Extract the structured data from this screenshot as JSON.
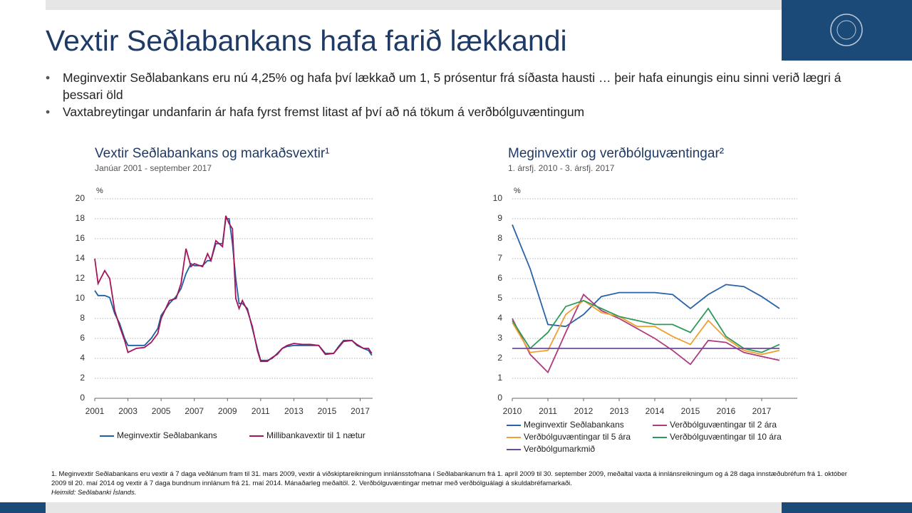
{
  "title": "Vextir Seðlabankans hafa farið lækkandi",
  "bullets": [
    "Meginvextir Seðlabankans eru nú 4,25% og hafa því lækkað um 1, 5 prósentur frá síðasta hausti … þeir hafa einungis einu sinni verið lægri á þessari öld",
    "Vaxtabreytingar undanfarin ár hafa fyrst fremst litast af því að ná tökum á verðbólguvæntingum"
  ],
  "footnotes": [
    "1. Meginvextir Seðlabankans eru vextir á 7 daga veðlánum fram til 31. mars 2009, vextir á viðskiptareikningum innlánsstofnana í Seðlabankanum frá 1. apríl 2009 til 30. september 2009, meðaltal vaxta á innlánsreikningum og á 28 daga innstæðubréfum frá 1. október 2009 til 20. maí 2014 og vextir á 7 daga bundnum innlánum frá 21. maí 2014. Mánaðarleg meðaltöl. 2. Verðbólguvæntingar metnar með verðbólguálagi á skuldabréfamarkaði.",
    "Heimild: Seðlabanki Íslands."
  ],
  "chart_data": [
    {
      "type": "line",
      "title": "Vextir Seðlabankans og markaðsvextir¹",
      "subtitle": "Janúar 2001 - september 2017",
      "y_unit": "%",
      "x": [
        2001.0,
        2001.2,
        2001.6,
        2001.9,
        2002.2,
        2002.5,
        2002.8,
        2003.0,
        2003.5,
        2004.0,
        2004.4,
        2004.8,
        2005.0,
        2005.5,
        2005.9,
        2006.2,
        2006.5,
        2006.8,
        2007.0,
        2007.5,
        2007.8,
        2008.0,
        2008.3,
        2008.7,
        2008.9,
        2009.1,
        2009.3,
        2009.5,
        2009.7,
        2009.9,
        2010.2,
        2010.5,
        2010.8,
        2011.0,
        2011.4,
        2011.7,
        2012.0,
        2012.3,
        2012.6,
        2013.0,
        2013.5,
        2014.0,
        2014.5,
        2014.9,
        2015.4,
        2015.7,
        2016.0,
        2016.5,
        2016.8,
        2017.2,
        2017.5,
        2017.7
      ],
      "series": [
        {
          "name": "Meginvextir Seðlabankans",
          "color": "#1f5f9f",
          "values": [
            10.8,
            10.3,
            10.3,
            10.1,
            8.5,
            7.5,
            6.0,
            5.3,
            5.3,
            5.3,
            6.0,
            7.0,
            8.3,
            9.5,
            10.2,
            11.0,
            12.5,
            13.5,
            13.3,
            13.3,
            13.8,
            13.8,
            15.5,
            15.5,
            18.0,
            18.0,
            15.5,
            12.0,
            9.5,
            9.5,
            9.0,
            7.0,
            5.0,
            3.8,
            3.8,
            4.0,
            4.5,
            5.0,
            5.2,
            5.3,
            5.3,
            5.3,
            5.3,
            4.5,
            4.5,
            5.2,
            5.8,
            5.8,
            5.3,
            5.0,
            4.8,
            4.3
          ]
        },
        {
          "name": "Millibankavextir til 1 nætur",
          "color": "#a3145a",
          "values": [
            14.0,
            11.5,
            12.8,
            12.0,
            8.8,
            7.2,
            5.8,
            4.6,
            5.0,
            5.1,
            5.6,
            6.5,
            8.0,
            9.8,
            10.0,
            11.5,
            15.0,
            13.2,
            13.5,
            13.2,
            14.5,
            13.8,
            15.8,
            15.2,
            18.3,
            17.5,
            17.0,
            10.0,
            9.0,
            9.8,
            8.8,
            7.2,
            4.8,
            3.7,
            3.7,
            4.1,
            4.4,
            5.0,
            5.3,
            5.5,
            5.4,
            5.4,
            5.3,
            4.4,
            4.5,
            5.1,
            5.7,
            5.8,
            5.4,
            5.0,
            5.0,
            4.5
          ]
        }
      ],
      "xlim": [
        2001,
        2017.75
      ],
      "xticks": [
        2001,
        2003,
        2005,
        2007,
        2009,
        2011,
        2013,
        2015,
        2017
      ],
      "ylim": [
        0,
        20
      ],
      "yticks": [
        0,
        2,
        4,
        6,
        8,
        10,
        12,
        14,
        16,
        18,
        20
      ],
      "grid": true
    },
    {
      "type": "line",
      "title": "Meginvextir og verðbólguvæntingar²",
      "subtitle": "1. ársfj. 2010 - 3. ársfj. 2017",
      "y_unit": "%",
      "x": [
        2010.0,
        2010.5,
        2011.0,
        2011.5,
        2012.0,
        2012.5,
        2013.0,
        2013.5,
        2014.0,
        2014.5,
        2015.0,
        2015.5,
        2016.0,
        2016.5,
        2017.0,
        2017.5
      ],
      "series": [
        {
          "name": "Meginvextir Seðlabankans",
          "color": "#2a63a8",
          "values": [
            8.7,
            6.5,
            3.7,
            3.6,
            4.2,
            5.1,
            5.3,
            5.3,
            5.3,
            5.2,
            4.5,
            5.2,
            5.7,
            5.6,
            5.1,
            4.5
          ]
        },
        {
          "name": "Verðbólguvæntingar til 2 ára",
          "color": "#b03a7e",
          "values": [
            4.0,
            2.2,
            1.3,
            3.3,
            5.2,
            4.4,
            4.0,
            3.5,
            3.0,
            2.4,
            1.7,
            2.9,
            2.8,
            2.3,
            2.1,
            1.9
          ]
        },
        {
          "name": "Verðbólguvæntingar til 5 ára",
          "color": "#f0a030",
          "values": [
            3.8,
            2.3,
            2.4,
            4.2,
            4.9,
            4.3,
            4.1,
            3.6,
            3.6,
            3.1,
            2.7,
            3.9,
            3.0,
            2.4,
            2.2,
            2.4
          ]
        },
        {
          "name": "Verðbólguvæntingar til 10 ára",
          "color": "#2e9a5a",
          "values": [
            3.9,
            2.5,
            3.3,
            4.6,
            4.9,
            4.5,
            4.1,
            3.9,
            3.7,
            3.7,
            3.3,
            4.5,
            3.1,
            2.5,
            2.3,
            2.7
          ]
        },
        {
          "name": "Verðbólgumarkmið",
          "color": "#6b4c9a",
          "values": [
            2.5,
            2.5,
            2.5,
            2.5,
            2.5,
            2.5,
            2.5,
            2.5,
            2.5,
            2.5,
            2.5,
            2.5,
            2.5,
            2.5,
            2.5,
            2.5
          ]
        }
      ],
      "xlim": [
        2010,
        2018
      ],
      "xticks": [
        2010,
        2011,
        2012,
        2013,
        2014,
        2015,
        2016,
        2017
      ],
      "ylim": [
        0,
        10
      ],
      "yticks": [
        0,
        1,
        2,
        3,
        4,
        5,
        6,
        7,
        8,
        9,
        10
      ],
      "grid": true
    }
  ]
}
